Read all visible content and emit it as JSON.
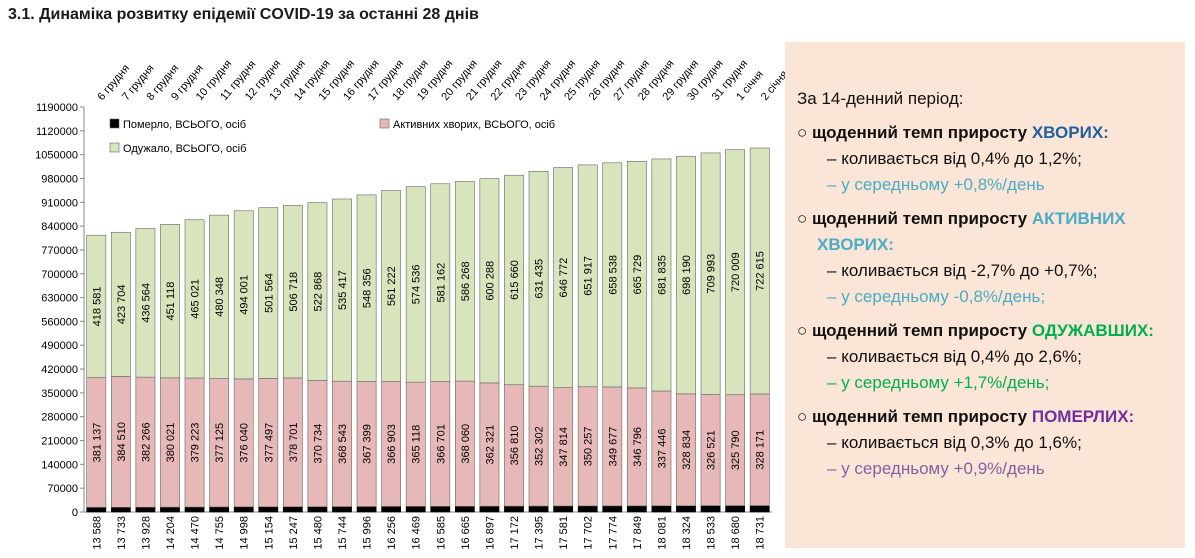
{
  "title": "3.1.  Динаміка розвитку епідемії COVID-19 за останні 28 днів",
  "chart_data": {
    "type": "stacked-bar",
    "categories": [
      "6 грудня",
      "7 грудня",
      "8 грудня",
      "9 грудня",
      "10 грудня",
      "11 грудня",
      "12 грудня",
      "13 грудня",
      "14 грудня",
      "15 грудня",
      "16 грудня",
      "17 грудня",
      "18 грудня",
      "19 грудня",
      "20 грудня",
      "21 грудня",
      "22 грудня",
      "23 грудня",
      "24 грудня",
      "25 грудня",
      "26 грудня",
      "27 грудня",
      "28 грудня",
      "29 грудня",
      "30 грудня",
      "31 грудня",
      "1 січня",
      "2 січня"
    ],
    "series": [
      {
        "name": "Померло, ВСЬОГО, осіб",
        "color": "#000000",
        "values": [
          13588,
          13733,
          13928,
          14204,
          14470,
          14755,
          14998,
          15154,
          15247,
          15480,
          15744,
          15996,
          16256,
          16469,
          16585,
          16665,
          16897,
          17172,
          17395,
          17581,
          17702,
          17774,
          17849,
          18081,
          18324,
          18533,
          18680,
          18731
        ],
        "value_labels": [
          "13 588",
          "13 733",
          "13 928",
          "14 204",
          "14 470",
          "14 755",
          "14 998",
          "15 154",
          "15 247",
          "15 480",
          "15 744",
          "15 996",
          "16 256",
          "16 469",
          "16 585",
          "16 665",
          "16 897",
          "17 172",
          "17 395",
          "17 581",
          "17 702",
          "17 774",
          "17 849",
          "18 081",
          "18 324",
          "18 533",
          "18 680",
          "18 731"
        ]
      },
      {
        "name": "Активних хворих, ВСЬОГО, осіб",
        "color": "#e6b8b7",
        "values": [
          381137,
          384510,
          382266,
          380021,
          379223,
          377125,
          376040,
          377497,
          378701,
          370734,
          368543,
          367399,
          366903,
          365118,
          366701,
          368060,
          362321,
          356810,
          352302,
          347814,
          350257,
          349677,
          346796,
          337446,
          328834,
          326521,
          325790,
          328171
        ],
        "value_labels": [
          "381 137",
          "384 510",
          "382 266",
          "380 021",
          "379 223",
          "377 125",
          "376 040",
          "377 497",
          "378 701",
          "370 734",
          "368 543",
          "367 399",
          "366 903",
          "365 118",
          "366 701",
          "368 060",
          "362 321",
          "356 810",
          "352 302",
          "347 814",
          "350 257",
          "349 677",
          "346 796",
          "337 446",
          "328 834",
          "326 521",
          "325 790",
          "328 171"
        ]
      },
      {
        "name": "Одужало, ВСЬОГО, осіб",
        "color": "#d7e4bc",
        "values": [
          418581,
          423704,
          436564,
          451118,
          465021,
          480348,
          494001,
          501564,
          506718,
          522868,
          535417,
          548356,
          561222,
          574536,
          581162,
          586268,
          600288,
          615660,
          631435,
          646772,
          651917,
          658538,
          665729,
          681835,
          698190,
          709993,
          720009,
          722615
        ],
        "value_labels": [
          "418 581",
          "423 704",
          "436 564",
          "451 118",
          "465 021",
          "480 348",
          "494 001",
          "501 564",
          "506 718",
          "522 868",
          "535 417",
          "548 356",
          "561 222",
          "574 536",
          "581 162",
          "586 268",
          "600 288",
          "615 660",
          "631 435",
          "646 772",
          "651 917",
          "658 538",
          "665 729",
          "681 835",
          "698 190",
          "709 993",
          "720 009",
          "722 615"
        ]
      }
    ],
    "ylim": [
      0,
      1190000
    ],
    "yticks": [
      0,
      70000,
      140000,
      210000,
      280000,
      350000,
      420000,
      490000,
      560000,
      630000,
      700000,
      770000,
      840000,
      910000,
      980000,
      1050000,
      1120000,
      1190000
    ],
    "grid": false
  },
  "panel": {
    "heading": "За 14-денний період:",
    "items": [
      {
        "lead": "щоденний темп приросту ",
        "highlight": "ХВОРИХ:",
        "color": "#1f5f9f",
        "range": "коливається від 0,4% до 1,2%;",
        "average": "у середньому +0,8%/день",
        "average_color": "#4bacc6"
      },
      {
        "lead": "щоденний темп приросту ",
        "highlight": "АКТИВНИХ ХВОРИХ:",
        "color": "#4bacc6",
        "range": "коливається від -2,7% до +0,7%;",
        "average": "у середньому -0,8%/день;",
        "average_color": "#4bacc6"
      },
      {
        "lead": "щоденний темп приросту ",
        "highlight": "ОДУЖАВШИХ:",
        "color": "#00b050",
        "range": "коливається від 0,4% до 2,6%;",
        "average": "у середньому +1,7%/день;",
        "average_color": "#00b050"
      },
      {
        "lead": "щоденний темп приросту ",
        "highlight": "ПОМЕРЛИХ:",
        "color": "#7030a0",
        "range": "коливається від 0,3% до 1,6%;",
        "average": "у середньому +0,9%/день",
        "average_color": "#8064a2"
      }
    ]
  }
}
